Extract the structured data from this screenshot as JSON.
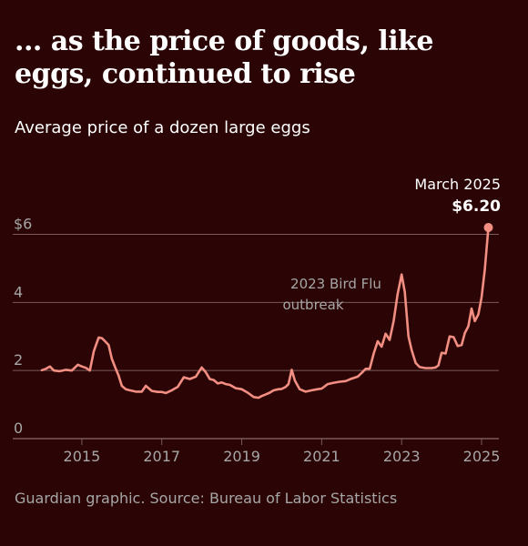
{
  "title": "... as the price of goods, like eggs, continued to rise",
  "subtitle": "Average price of a dozen large eggs",
  "source": "Guardian graphic. Source: Bureau of Labor Statistics",
  "colors": {
    "background": "#2b0506",
    "line": "#f28e82",
    "grid": "#7a5a5a",
    "axis_text": "#a6a6a6",
    "text": "#ffffff"
  },
  "chart_data": {
    "type": "line",
    "title": "... as the price of goods, like eggs, continued to rise",
    "subtitle": "Average price of a dozen large eggs",
    "xlabel": "",
    "ylabel": "",
    "xlim": [
      2014,
      2025.25
    ],
    "ylim": [
      0,
      6.2
    ],
    "y_ticks": [
      0,
      2,
      4,
      6
    ],
    "y_tick_labels": [
      "0",
      "2",
      "4",
      "$6"
    ],
    "x_ticks": [
      2015,
      2017,
      2019,
      2021,
      2023,
      2025
    ],
    "x_tick_labels": [
      "2015",
      "2017",
      "2019",
      "2021",
      "2023",
      "2025"
    ],
    "grid": "horizontal",
    "series": [
      {
        "x": [
          2014.0,
          2014.1,
          2014.2,
          2014.3,
          2014.45,
          2014.6,
          2014.75,
          2014.9,
          2015.0,
          2015.1,
          2015.2,
          2015.3,
          2015.42,
          2015.5,
          2015.58,
          2015.67,
          2015.75,
          2015.83,
          2015.92,
          2016.0,
          2016.1,
          2016.2,
          2016.35,
          2016.5,
          2016.6,
          2016.75,
          2016.9,
          2017.0,
          2017.1,
          2017.25,
          2017.4,
          2017.55,
          2017.7,
          2017.85,
          2018.0,
          2018.1,
          2018.2,
          2018.3,
          2018.4,
          2018.5,
          2018.6,
          2018.7,
          2018.85,
          2019.0,
          2019.15,
          2019.3,
          2019.42,
          2019.5,
          2019.6,
          2019.7,
          2019.8,
          2019.92,
          2020.0,
          2020.1,
          2020.17,
          2020.25,
          2020.33,
          2020.45,
          2020.6,
          2020.75,
          2020.9,
          2021.0,
          2021.15,
          2021.3,
          2021.45,
          2021.6,
          2021.75,
          2021.9,
          2022.0,
          2022.1,
          2022.2,
          2022.3,
          2022.4,
          2022.5,
          2022.6,
          2022.7,
          2022.8,
          2022.9,
          2023.0,
          2023.08,
          2023.17,
          2023.25,
          2023.35,
          2023.45,
          2023.6,
          2023.75,
          2023.85,
          2023.92,
          2024.0,
          2024.1,
          2024.2,
          2024.3,
          2024.4,
          2024.5,
          2024.58,
          2024.67,
          2024.75,
          2024.83,
          2024.92,
          2025.0,
          2025.08,
          2025.17
        ],
        "values": [
          2.01,
          2.05,
          2.12,
          2.0,
          1.98,
          2.02,
          2.0,
          2.17,
          2.12,
          2.08,
          2.0,
          2.57,
          2.97,
          2.95,
          2.86,
          2.75,
          2.35,
          2.1,
          1.85,
          1.55,
          1.45,
          1.42,
          1.38,
          1.38,
          1.55,
          1.4,
          1.37,
          1.37,
          1.34,
          1.42,
          1.52,
          1.8,
          1.75,
          1.82,
          2.09,
          1.95,
          1.75,
          1.72,
          1.62,
          1.65,
          1.6,
          1.58,
          1.48,
          1.45,
          1.35,
          1.22,
          1.2,
          1.25,
          1.3,
          1.35,
          1.42,
          1.45,
          1.46,
          1.52,
          1.6,
          2.02,
          1.7,
          1.45,
          1.38,
          1.42,
          1.45,
          1.47,
          1.6,
          1.64,
          1.67,
          1.69,
          1.76,
          1.82,
          1.93,
          2.05,
          2.05,
          2.5,
          2.86,
          2.7,
          3.08,
          2.9,
          3.45,
          4.25,
          4.82,
          4.3,
          3.0,
          2.6,
          2.22,
          2.1,
          2.07,
          2.07,
          2.09,
          2.15,
          2.52,
          2.5,
          3.0,
          2.98,
          2.72,
          2.75,
          3.1,
          3.3,
          3.82,
          3.45,
          3.65,
          4.15,
          4.95,
          6.2
        ]
      }
    ],
    "annotations": [
      {
        "text": "2023 Bird Flu outbreak",
        "lines": [
          "2023 Bird Flu",
          "outbreak"
        ],
        "x": 2022.95,
        "y": 4.82
      },
      {
        "text": "March 2025 $6.20",
        "date": "March 2025",
        "value_label": "$6.20",
        "x": 2025.17,
        "y": 6.2
      }
    ]
  }
}
